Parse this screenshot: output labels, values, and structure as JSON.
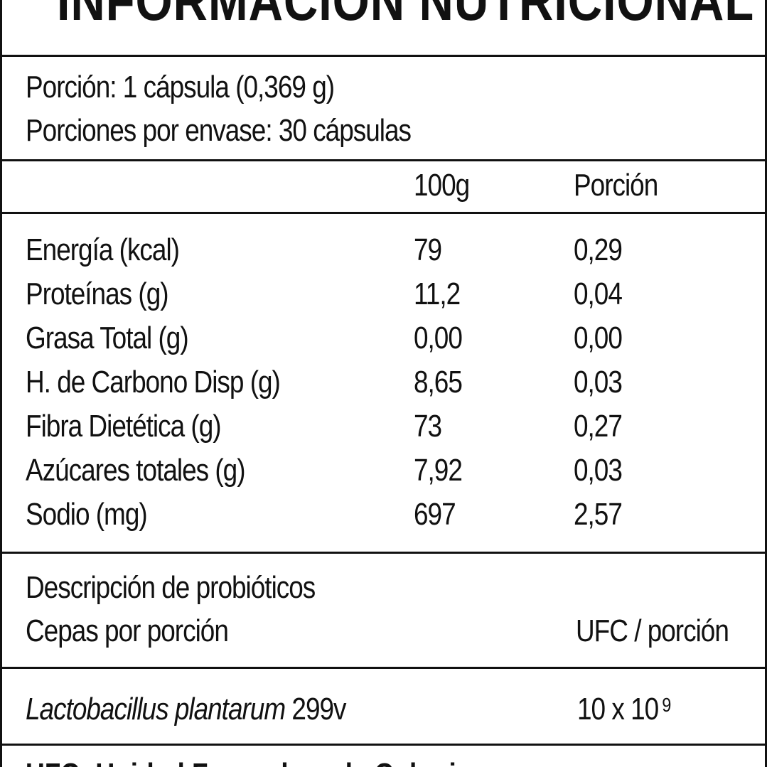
{
  "title": "INFORMACIÓN NUTRICIONAL",
  "serving": {
    "portion": "Porción: 1 cápsula (0,369 g)",
    "per_container": "Porciones por envase: 30 cápsulas"
  },
  "columns": {
    "per100": "100g",
    "per_portion": "Porción"
  },
  "nutrients": [
    {
      "name": "Energía (kcal)",
      "per100": "79",
      "per_portion": "0,29"
    },
    {
      "name": "Proteínas (g)",
      "per100": "11,2",
      "per_portion": "0,04"
    },
    {
      "name": "Grasa Total (g)",
      "per100": "0,00",
      "per_portion": "0,00"
    },
    {
      "name": "H. de Carbono Disp (g)",
      "per100": "8,65",
      "per_portion": "0,03"
    },
    {
      "name": "Fibra Dietética (g)",
      "per100": "73",
      "per_portion": "0,27"
    },
    {
      "name": "Azúcares totales (g)",
      "per100": "7,92",
      "per_portion": "0,03"
    },
    {
      "name": "Sodio (mg)",
      "per100": "697",
      "per_portion": "2,57"
    }
  ],
  "probiotics": {
    "heading": "Descripción de probióticos",
    "strain_label": "Cepas por porción",
    "ufc_label": "UFC / porción",
    "strain_name": "Lactobacillus plantarum",
    "strain_code": "299v",
    "ufc_base": "10 x  10",
    "ufc_exponent": "9"
  },
  "footnote": "UFC: Unidad Formadora de Colonias"
}
